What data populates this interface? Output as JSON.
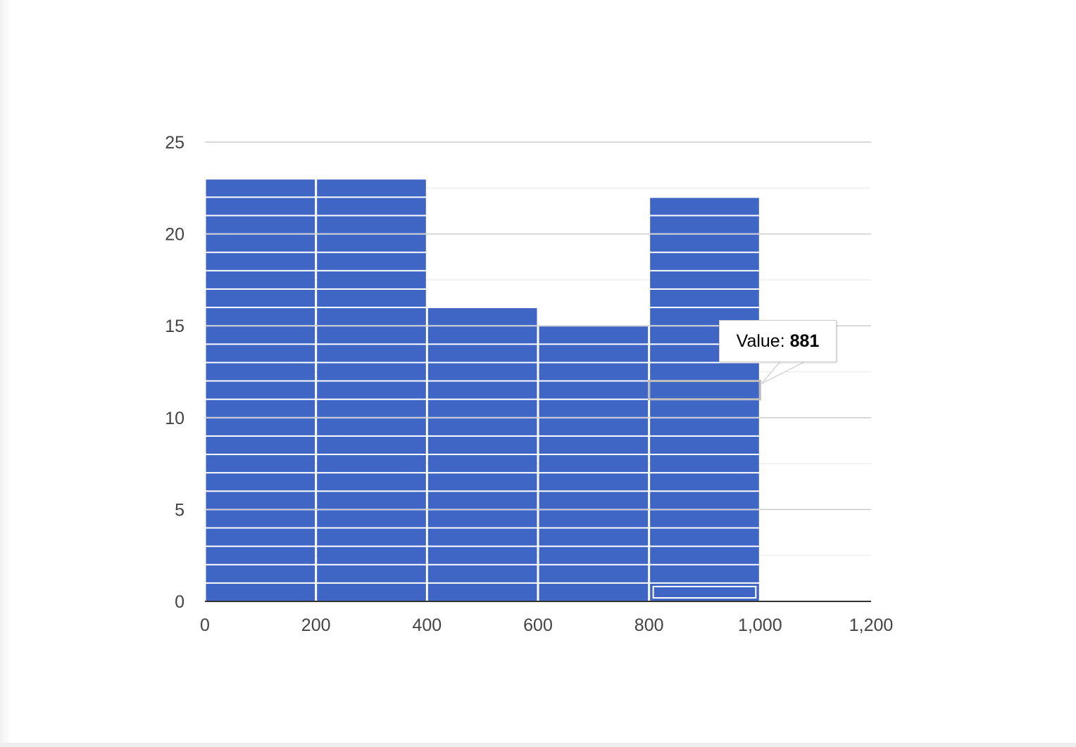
{
  "chart_data": {
    "type": "bar",
    "subtype": "histogram",
    "title": "",
    "xlabel": "",
    "ylabel": "",
    "bins": [
      {
        "x0": 0,
        "x1": 200,
        "count": 23
      },
      {
        "x0": 200,
        "x1": 400,
        "count": 23
      },
      {
        "x0": 400,
        "x1": 600,
        "count": 16
      },
      {
        "x0": 600,
        "x1": 800,
        "count": 15
      },
      {
        "x0": 800,
        "x1": 1000,
        "count": 22
      }
    ],
    "xlim": [
      0,
      1200
    ],
    "ylim": [
      0,
      25
    ],
    "x_ticks": [
      "0",
      "200",
      "400",
      "600",
      "800",
      "1,000",
      "1,200"
    ],
    "y_ticks": [
      "0",
      "5",
      "10",
      "15",
      "20",
      "25"
    ],
    "grid": true,
    "bar_color": "#4066c5",
    "highlighted_item": {
      "bin_index": 4,
      "stack_index": 0
    },
    "tooltip": {
      "label": "Value:",
      "value": "881",
      "bin_index": 4,
      "stack_index": 11
    }
  }
}
